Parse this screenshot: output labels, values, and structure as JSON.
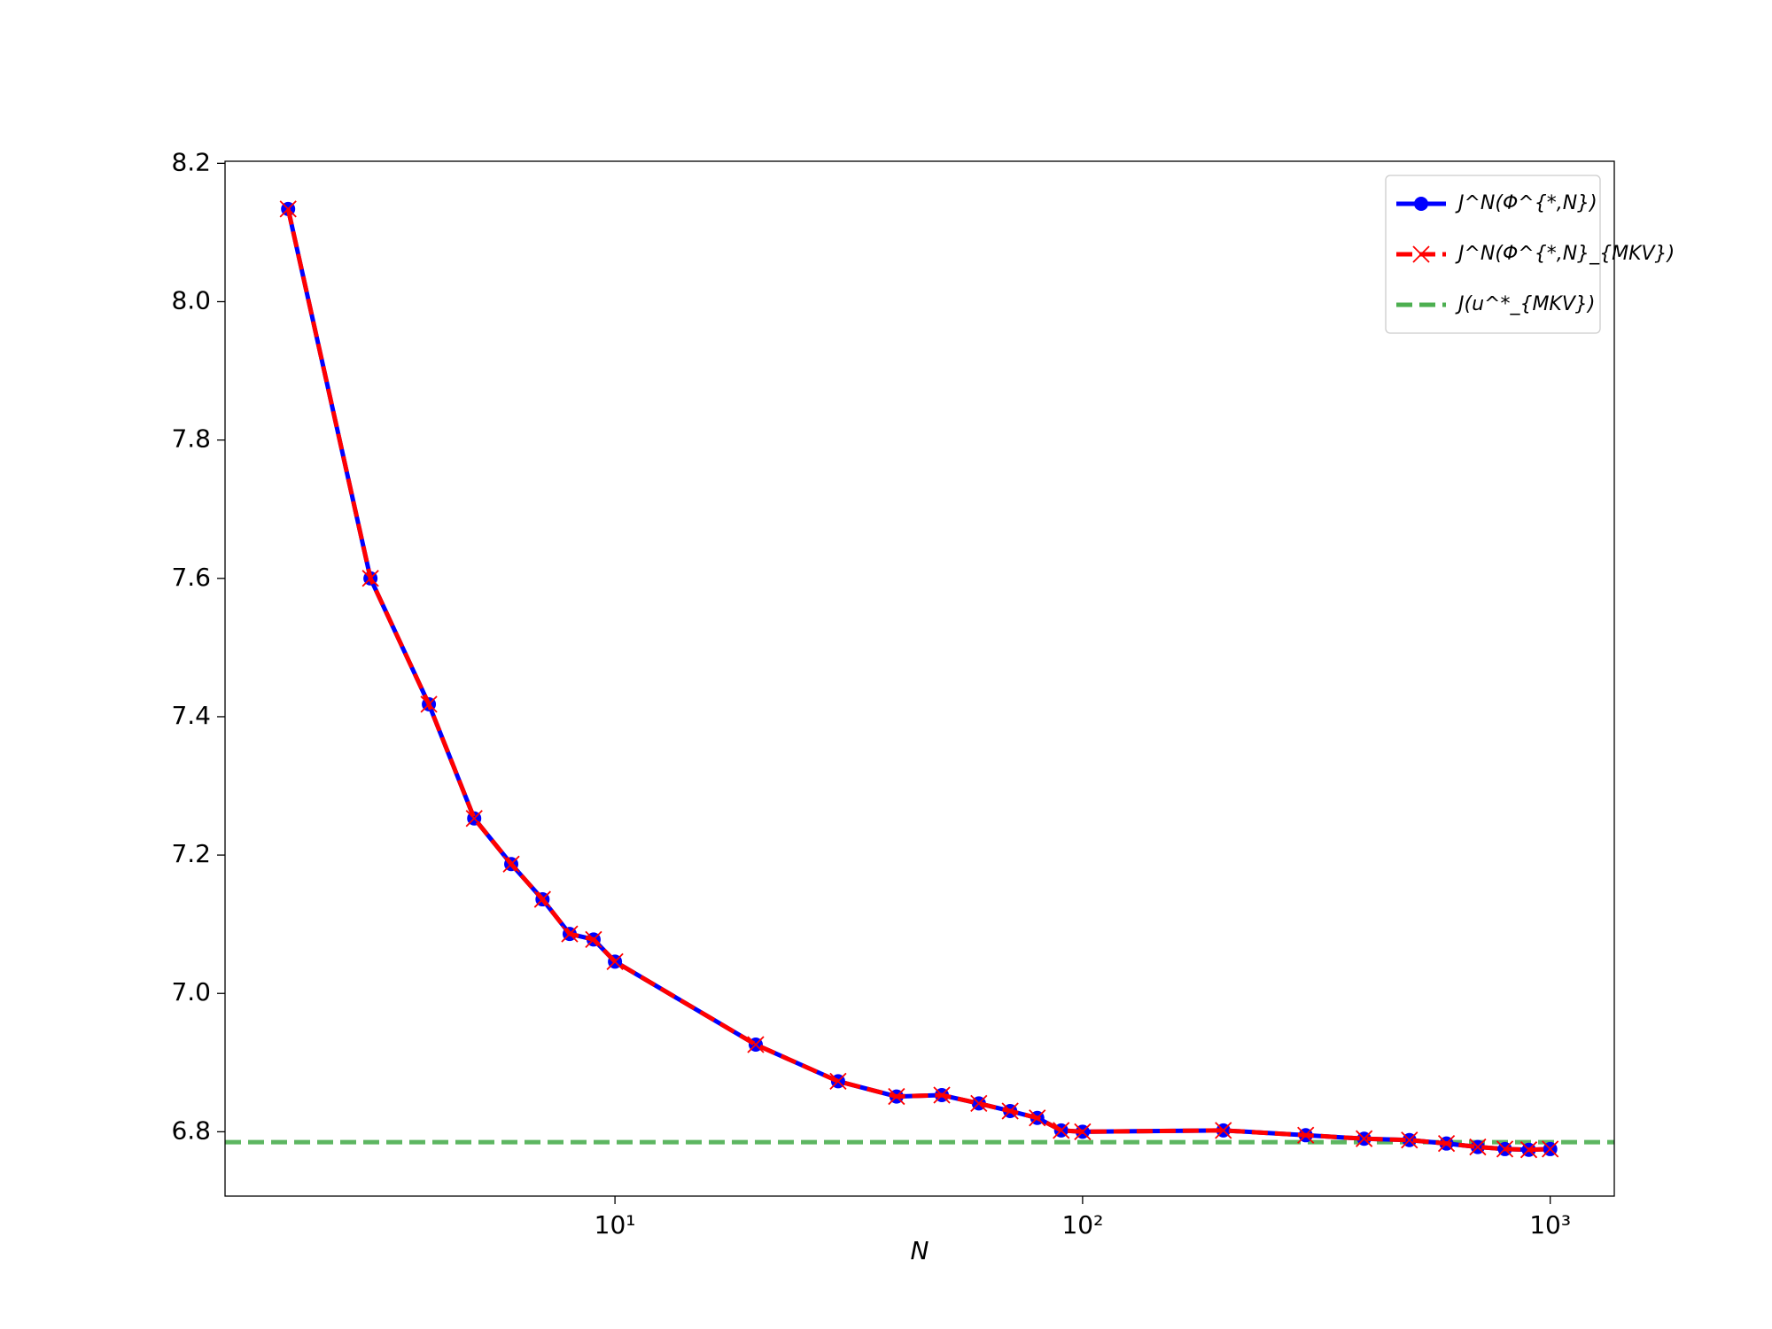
{
  "chart_data": {
    "type": "line",
    "x_label": "N",
    "x_scale": "log",
    "x": [
      2,
      3,
      4,
      5,
      6,
      7,
      8,
      9,
      10,
      20,
      30,
      40,
      50,
      60,
      70,
      80,
      90,
      100,
      200,
      300,
      400,
      500,
      600,
      700,
      800,
      900,
      1000
    ],
    "series": [
      {
        "name": "J^N(Φ^{*,N})",
        "color": "#0000ff",
        "marker": "circle",
        "linestyle": "solid",
        "values": [
          8.134,
          7.6,
          7.418,
          7.253,
          7.187,
          7.136,
          7.086,
          7.078,
          7.046,
          6.926,
          6.873,
          6.851,
          6.853,
          6.841,
          6.83,
          6.82,
          6.802,
          6.8,
          6.802,
          6.795,
          6.79,
          6.788,
          6.783,
          6.778,
          6.775,
          6.774,
          6.775
        ]
      },
      {
        "name": "J^N(Φ^{*,N}_{MKV})",
        "color": "#ff0000",
        "marker": "x",
        "linestyle": "dashed",
        "values": [
          8.134,
          7.6,
          7.418,
          7.253,
          7.187,
          7.136,
          7.086,
          7.078,
          7.046,
          6.926,
          6.873,
          6.851,
          6.853,
          6.841,
          6.83,
          6.82,
          6.802,
          6.8,
          6.802,
          6.795,
          6.79,
          6.788,
          6.783,
          6.778,
          6.775,
          6.774,
          6.775
        ]
      }
    ],
    "hline": {
      "name": "J(u^*_{MKV})",
      "value": 6.785,
      "color": "#4caf50",
      "linestyle": "dashed"
    },
    "xlim": [
      1.466,
      1371
    ],
    "ylim": [
      6.707,
      8.203
    ],
    "xticks": [
      {
        "value": 10,
        "label": "10¹"
      },
      {
        "value": 100,
        "label": "10²"
      },
      {
        "value": 1000,
        "label": "10³"
      }
    ],
    "yticks": [
      6.8,
      7.0,
      7.2,
      7.4,
      7.6,
      7.8,
      8.0,
      8.2
    ],
    "ytick_decimals": 1,
    "legend": "upper right"
  }
}
